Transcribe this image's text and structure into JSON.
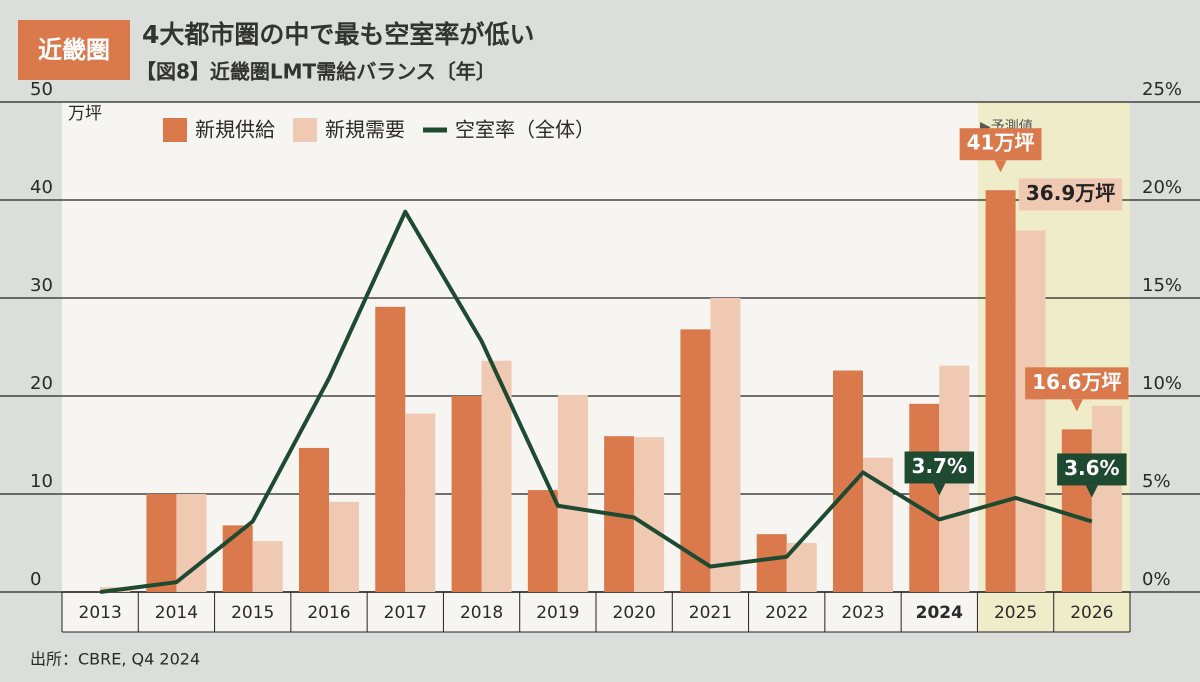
{
  "badge": "近畿圏",
  "title": "4大都市圏の中で最も空室率が低い",
  "subtitle": "【図8】近畿圏LMT需給バランス〔年〕",
  "source": "出所：CBRE, Q4 2024",
  "chart_data": {
    "type": "bar",
    "y_label": "万坪",
    "forecast_label": "▶予測値",
    "categories": [
      "2013",
      "2014",
      "2015",
      "2016",
      "2017",
      "2018",
      "2019",
      "2020",
      "2021",
      "2022",
      "2023",
      "2024",
      "2025",
      "2026"
    ],
    "series": [
      {
        "name": "新規供給",
        "color": "#d9794c",
        "values": [
          0,
          10,
          6.8,
          14.7,
          29.1,
          20,
          10.4,
          15.9,
          26.8,
          5.9,
          22.6,
          19.2,
          41,
          16.6
        ],
        "value_labels": [
          null,
          null,
          null,
          null,
          null,
          null,
          null,
          null,
          null,
          null,
          null,
          null,
          "41万坪",
          "16.6万坪"
        ]
      },
      {
        "name": "新規需要",
        "color": "#f0c9b3",
        "values": [
          0.5,
          10,
          5.2,
          9.2,
          18.2,
          23.6,
          20.1,
          15.8,
          30,
          5,
          13.7,
          23.1,
          36.9,
          19
        ],
        "value_labels": [
          null,
          null,
          null,
          null,
          null,
          null,
          null,
          null,
          null,
          null,
          null,
          null,
          "36.9万坪",
          null
        ]
      },
      {
        "name": "空室率（全体）",
        "type": "line",
        "axis": "y2",
        "color": "#1f4a32",
        "values": [
          0,
          0.5,
          3.6,
          10.9,
          19.4,
          12.8,
          4.4,
          3.8,
          1.3,
          1.8,
          6.1,
          3.7,
          4.8,
          3.6
        ],
        "value_labels": [
          null,
          null,
          null,
          null,
          null,
          null,
          null,
          null,
          null,
          null,
          null,
          "3.7%",
          null,
          "3.6%"
        ]
      }
    ],
    "ylim": [
      0,
      50
    ],
    "yticks": [
      0,
      10,
      20,
      30,
      40,
      50
    ],
    "y2lim": [
      0,
      25
    ],
    "y2ticks": [
      {
        "value": 0,
        "label": "0%"
      },
      {
        "value": 5,
        "label": "5%"
      },
      {
        "value": 10,
        "label": "10%"
      },
      {
        "value": 15,
        "label": "15%"
      },
      {
        "value": 20,
        "label": "20%"
      },
      {
        "value": 25,
        "label": "25%"
      }
    ],
    "grid": true
  }
}
